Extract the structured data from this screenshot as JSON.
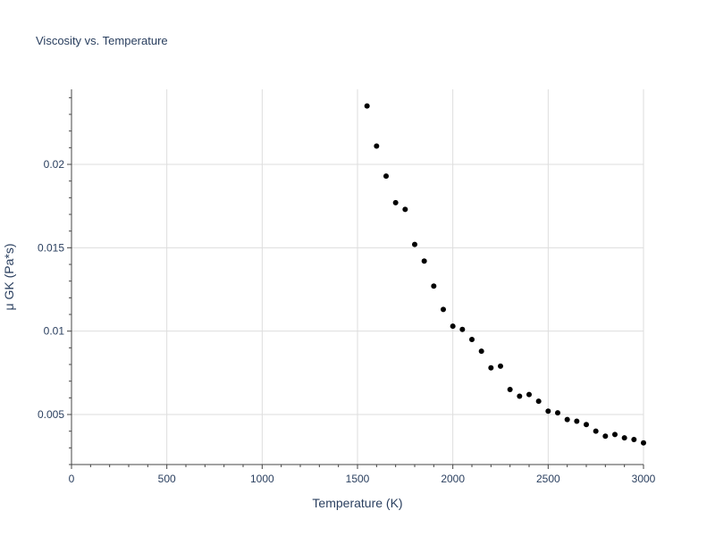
{
  "chart_data": {
    "type": "scatter",
    "title": "Viscosity vs. Temperature",
    "xlabel": "Temperature (K)",
    "ylabel": "μ GK (Pa*s)",
    "xlim": [
      0,
      3000
    ],
    "ylim": [
      0.002,
      0.0245
    ],
    "x_ticks": [
      0,
      500,
      1000,
      1500,
      2000,
      2500,
      3000
    ],
    "x_tick_labels": [
      "0",
      "500",
      "1000",
      "1500",
      "2000",
      "2500",
      "3000"
    ],
    "y_ticks": [
      0.005,
      0.01,
      0.015,
      0.02
    ],
    "y_tick_labels": [
      "0.005",
      "0.01",
      "0.015",
      "0.02"
    ],
    "grid": true,
    "marker_color": "#000000",
    "series": [
      {
        "x": [
          1550,
          1600,
          1650,
          1700,
          1750,
          1800,
          1850,
          1900,
          1950,
          2000,
          2050,
          2100,
          2150,
          2200,
          2250,
          2300,
          2350,
          2400,
          2450,
          2500,
          2550,
          2600,
          2650,
          2700,
          2750,
          2800,
          2850,
          2900,
          2950,
          3000
        ],
        "y": [
          0.0235,
          0.0211,
          0.0193,
          0.0177,
          0.0173,
          0.0152,
          0.0142,
          0.0127,
          0.0113,
          0.0103,
          0.0101,
          0.0095,
          0.0088,
          0.0078,
          0.0079,
          0.0065,
          0.0061,
          0.0062,
          0.0058,
          0.0052,
          0.0051,
          0.0047,
          0.0046,
          0.0044,
          0.004,
          0.0037,
          0.0038,
          0.0036,
          0.0035,
          0.0033
        ]
      }
    ]
  }
}
